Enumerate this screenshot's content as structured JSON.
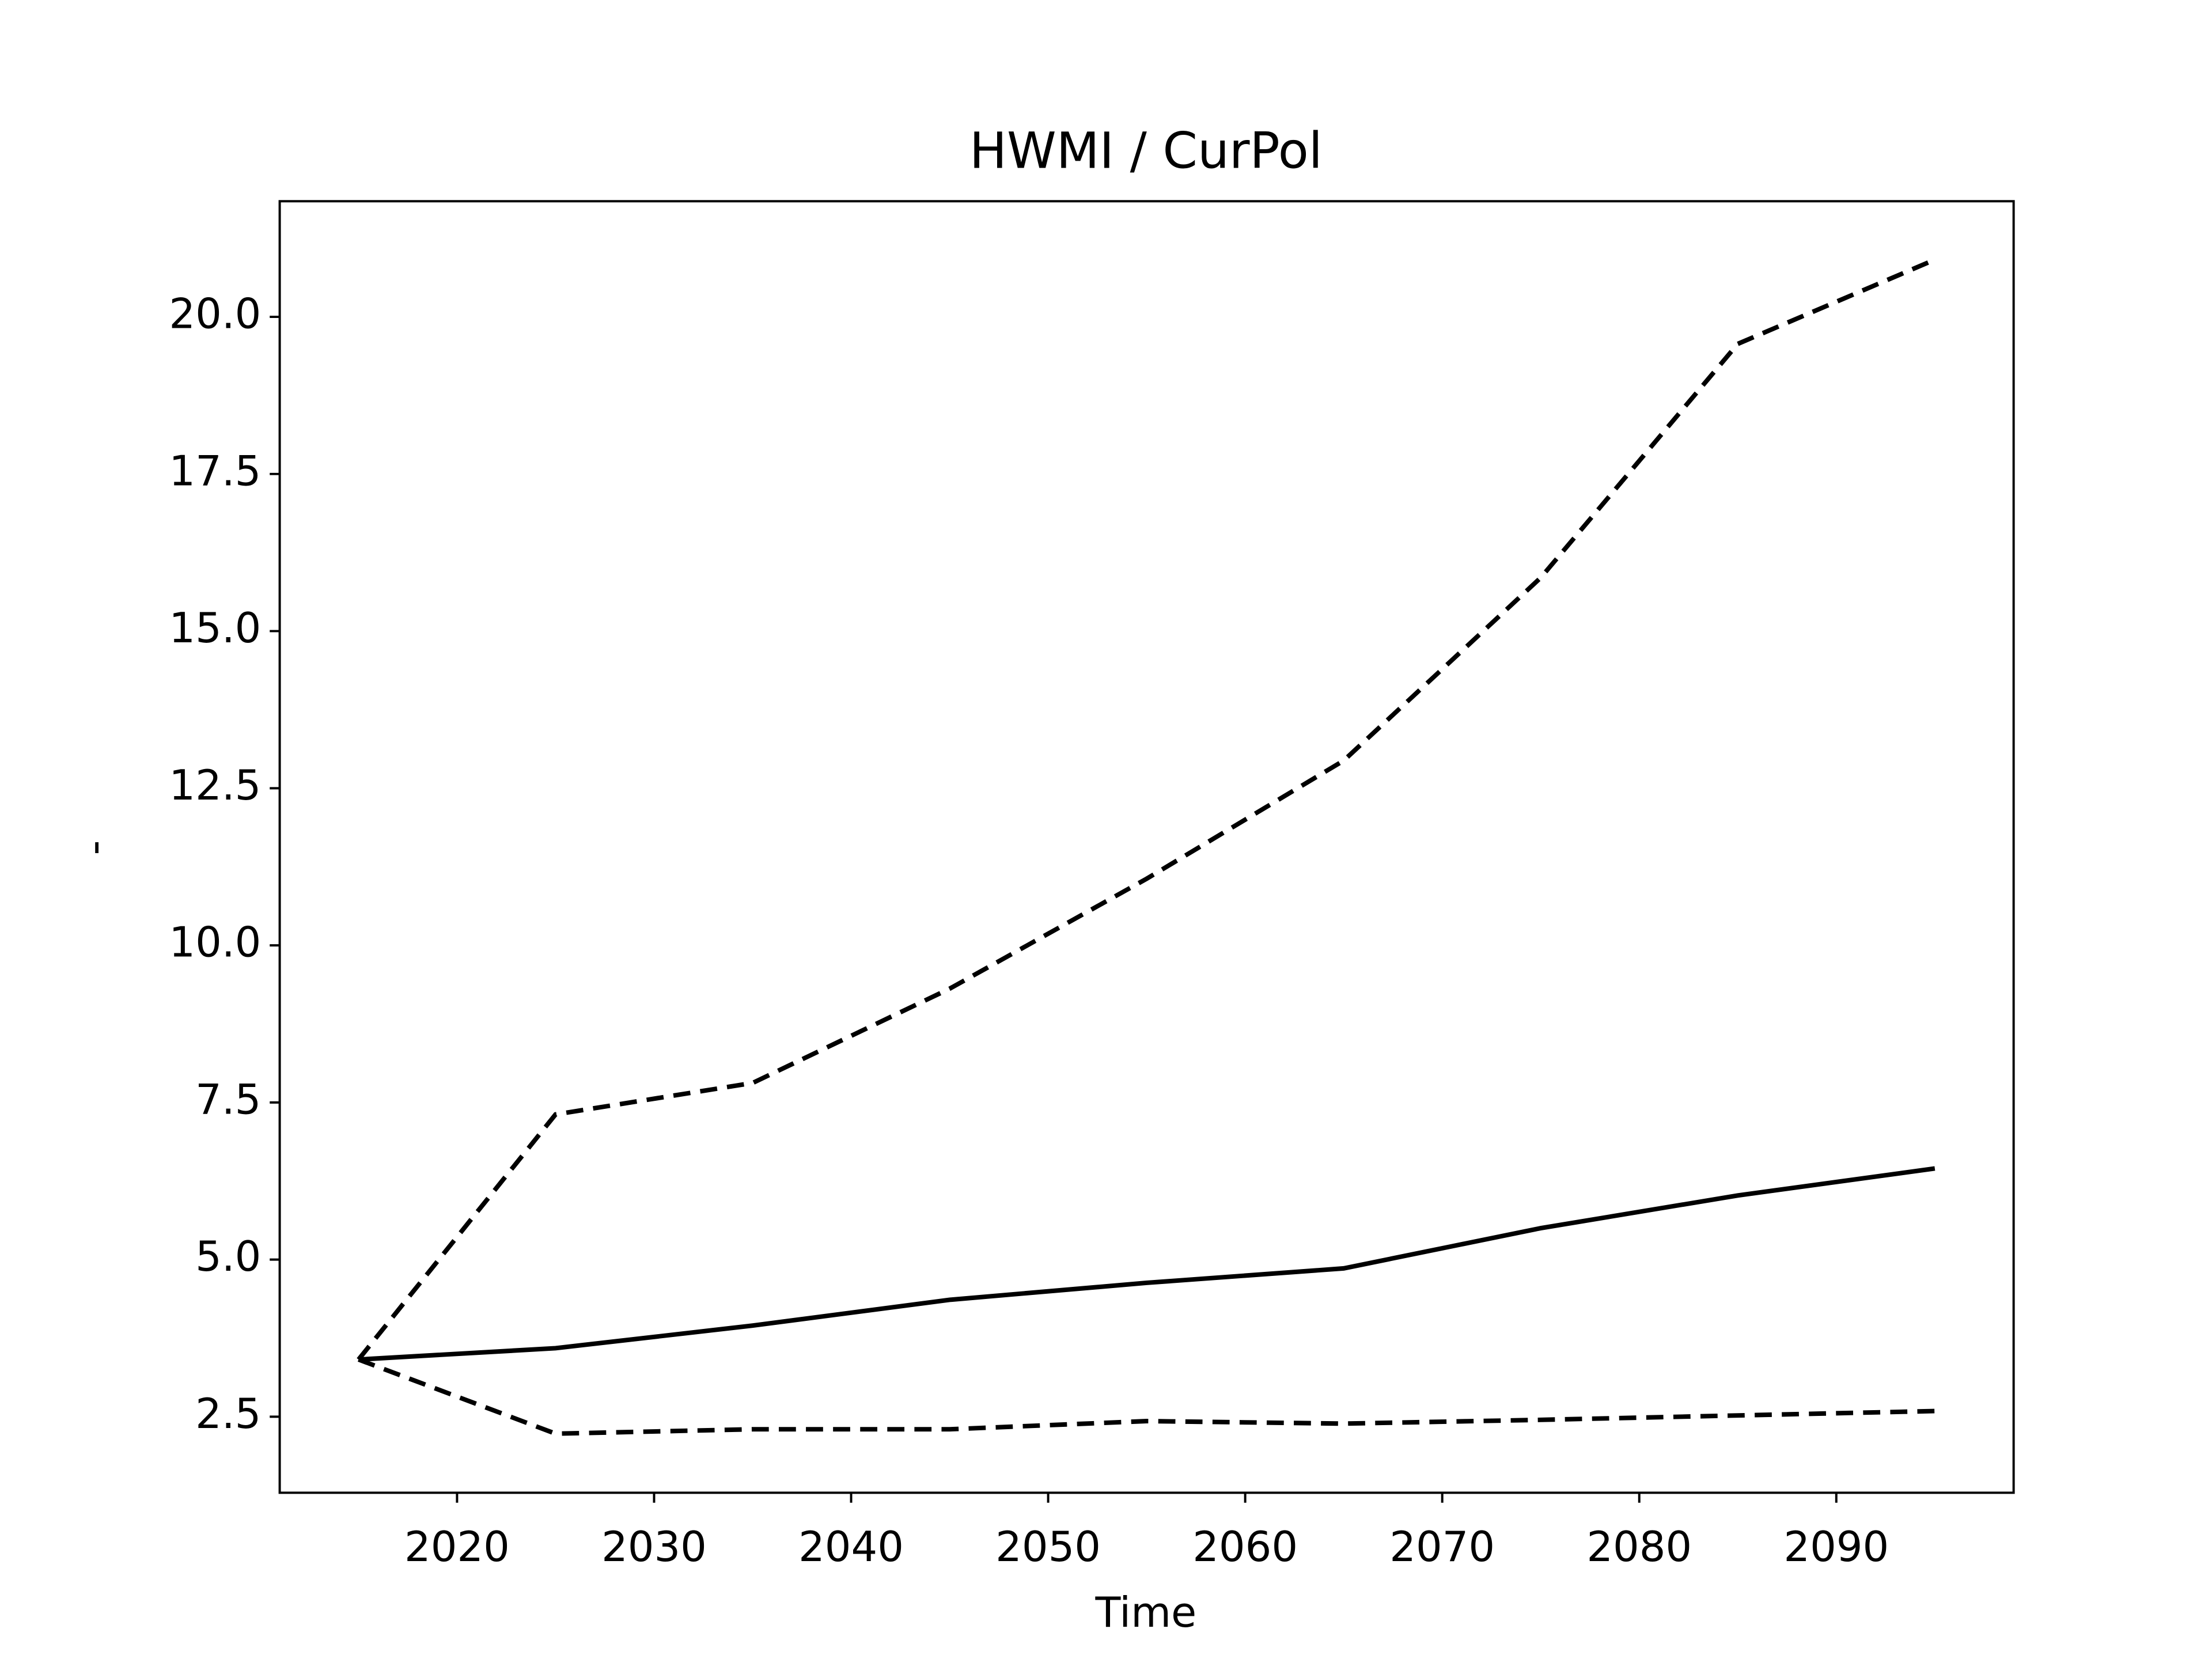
{
  "chart_data": {
    "type": "line",
    "title": "HWMI / CurPol",
    "xlabel": "Time",
    "ylabel": "-",
    "x": [
      2015,
      2025,
      2035,
      2045,
      2055,
      2065,
      2075,
      2085,
      2095
    ],
    "series": [
      {
        "color": "#000000",
        "linestyle": "solid",
        "values": [
          3.41,
          3.59,
          3.95,
          4.36,
          4.63,
          4.86,
          5.5,
          6.02,
          6.45
        ]
      },
      {
        "color": "#000000",
        "linestyle": "dashed",
        "values": [
          3.41,
          7.31,
          7.81,
          9.31,
          11.06,
          12.94,
          15.85,
          19.57,
          20.91
        ]
      },
      {
        "color": "#000000",
        "linestyle": "dashed",
        "values": [
          3.41,
          2.23,
          2.3,
          2.3,
          2.43,
          2.39,
          2.45,
          2.52,
          2.59
        ]
      }
    ],
    "xlim": [
      2011,
      2099
    ],
    "xticks": [
      2020,
      2030,
      2040,
      2050,
      2060,
      2070,
      2080,
      2090
    ],
    "ylim": [
      1.29,
      21.84
    ],
    "yticks": [
      {
        "value": 2.5,
        "label": "2.5"
      },
      {
        "value": 5,
        "label": "5.0"
      },
      {
        "value": 7.5,
        "label": "7.5"
      },
      {
        "value": 10,
        "label": "10.0"
      },
      {
        "value": 12.5,
        "label": "12.5"
      },
      {
        "value": 15,
        "label": "15.0"
      },
      {
        "value": 17.5,
        "label": "17.5"
      },
      {
        "value": 20,
        "label": "20.0"
      }
    ],
    "grid": false
  }
}
